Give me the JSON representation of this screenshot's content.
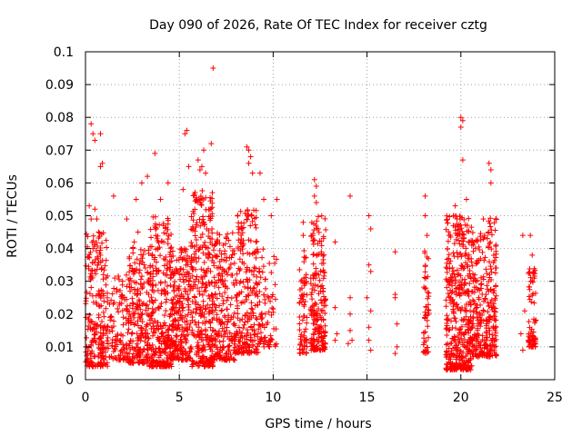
{
  "chart_data": {
    "type": "scatter",
    "title": "Day 090 of 2026, Rate Of TEC Index for receiver cztg",
    "xlabel": "GPS time / hours",
    "ylabel": "ROTI / TECUs",
    "xlim": [
      0,
      25
    ],
    "ylim": [
      0,
      0.1
    ],
    "xticks": [
      0,
      5,
      10,
      15,
      20,
      25
    ],
    "xtick_labels": [
      "0",
      "5",
      "10",
      "15",
      "20",
      "25"
    ],
    "yticks": [
      0,
      0.01,
      0.02,
      0.03,
      0.04,
      0.05,
      0.06,
      0.07,
      0.08,
      0.09,
      0.1
    ],
    "ytick_labels": [
      "0",
      "0.01",
      "0.02",
      "0.03",
      "0.04",
      "0.05",
      "0.06",
      "0.07",
      "0.08",
      "0.09",
      "0.1"
    ],
    "grid": true,
    "marker": "+",
    "color": "#ff0000",
    "series": [
      {
        "name": "ROTI",
        "points": [
          [
            0.3,
            0.078
          ],
          [
            0.4,
            0.075
          ],
          [
            0.5,
            0.073
          ],
          [
            0.8,
            0.075
          ],
          [
            0.9,
            0.066
          ],
          [
            0.8,
            0.065
          ],
          [
            0.2,
            0.053
          ],
          [
            0.5,
            0.052
          ],
          [
            0.6,
            0.049
          ],
          [
            0.3,
            0.049
          ],
          [
            0.7,
            0.045
          ],
          [
            0.4,
            0.04
          ],
          [
            1.5,
            0.056
          ],
          [
            2.2,
            0.049
          ],
          [
            2.6,
            0.042
          ],
          [
            2.8,
            0.045
          ],
          [
            3.3,
            0.062
          ],
          [
            3.7,
            0.069
          ],
          [
            4.4,
            0.06
          ],
          [
            3.0,
            0.06
          ],
          [
            2.7,
            0.055
          ],
          [
            4.0,
            0.055
          ],
          [
            5.3,
            0.075
          ],
          [
            5.4,
            0.076
          ],
          [
            5.5,
            0.065
          ],
          [
            5.2,
            0.058
          ],
          [
            6.0,
            0.067
          ],
          [
            6.2,
            0.065
          ],
          [
            6.1,
            0.064
          ],
          [
            6.4,
            0.063
          ],
          [
            6.3,
            0.07
          ],
          [
            6.7,
            0.072
          ],
          [
            6.8,
            0.095
          ],
          [
            8.6,
            0.071
          ],
          [
            8.7,
            0.07
          ],
          [
            8.8,
            0.068
          ],
          [
            8.7,
            0.066
          ],
          [
            8.9,
            0.063
          ],
          [
            9.3,
            0.063
          ],
          [
            9.5,
            0.055
          ],
          [
            9.9,
            0.05
          ],
          [
            10.2,
            0.055
          ],
          [
            11.6,
            0.048
          ],
          [
            11.6,
            0.044
          ],
          [
            12.2,
            0.061
          ],
          [
            12.3,
            0.059
          ],
          [
            12.2,
            0.056
          ],
          [
            12.3,
            0.054
          ],
          [
            12.4,
            0.046
          ],
          [
            13.3,
            0.042
          ],
          [
            14.1,
            0.056
          ],
          [
            15.1,
            0.05
          ],
          [
            15.2,
            0.046
          ],
          [
            16.5,
            0.039
          ],
          [
            18.1,
            0.056
          ],
          [
            18.1,
            0.05
          ],
          [
            18.2,
            0.044
          ],
          [
            19.6,
            0.05
          ],
          [
            19.7,
            0.053
          ],
          [
            19.8,
            0.049
          ],
          [
            19.6,
            0.047
          ],
          [
            20.0,
            0.08
          ],
          [
            20.1,
            0.079
          ],
          [
            20.0,
            0.077
          ],
          [
            20.1,
            0.067
          ],
          [
            20.3,
            0.055
          ],
          [
            21.2,
            0.049
          ],
          [
            21.5,
            0.066
          ],
          [
            21.6,
            0.064
          ],
          [
            21.6,
            0.06
          ],
          [
            23.3,
            0.044
          ],
          [
            23.7,
            0.044
          ],
          [
            23.8,
            0.038
          ],
          [
            16.5,
            0.026
          ],
          [
            16.5,
            0.025
          ],
          [
            16.6,
            0.017
          ],
          [
            16.6,
            0.01
          ],
          [
            16.5,
            0.008
          ],
          [
            14.1,
            0.025
          ],
          [
            14.1,
            0.02
          ],
          [
            14.1,
            0.015
          ],
          [
            14.2,
            0.012
          ],
          [
            14.0,
            0.011
          ],
          [
            13.3,
            0.022
          ],
          [
            13.4,
            0.014
          ],
          [
            13.3,
            0.012
          ],
          [
            15.1,
            0.035
          ],
          [
            15.2,
            0.033
          ],
          [
            15.0,
            0.025
          ],
          [
            15.2,
            0.021
          ],
          [
            15.1,
            0.016
          ],
          [
            15.1,
            0.012
          ],
          [
            15.2,
            0.009
          ],
          [
            23.4,
            0.021
          ],
          [
            23.2,
            0.014
          ],
          [
            23.3,
            0.009
          ]
        ]
      }
    ],
    "clusters": [
      {
        "x": [
          0.0,
          1.2
        ],
        "y": [
          0.004,
          0.045
        ],
        "n": 230
      },
      {
        "x": [
          1.2,
          2.3
        ],
        "y": [
          0.006,
          0.032
        ],
        "n": 110
      },
      {
        "x": [
          2.3,
          3.4
        ],
        "y": [
          0.005,
          0.042
        ],
        "n": 220
      },
      {
        "x": [
          3.4,
          4.6
        ],
        "y": [
          0.004,
          0.05
        ],
        "n": 300
      },
      {
        "x": [
          4.6,
          5.6
        ],
        "y": [
          0.006,
          0.04
        ],
        "n": 230
      },
      {
        "x": [
          5.6,
          6.8
        ],
        "y": [
          0.004,
          0.058
        ],
        "n": 320
      },
      {
        "x": [
          6.8,
          8.0
        ],
        "y": [
          0.006,
          0.045
        ],
        "n": 220
      },
      {
        "x": [
          8.0,
          9.2
        ],
        "y": [
          0.008,
          0.052
        ],
        "n": 230
      },
      {
        "x": [
          9.2,
          10.2
        ],
        "y": [
          0.01,
          0.04
        ],
        "n": 80
      },
      {
        "x": [
          11.4,
          11.8
        ],
        "y": [
          0.008,
          0.04
        ],
        "n": 70
      },
      {
        "x": [
          12.0,
          12.8
        ],
        "y": [
          0.009,
          0.05
        ],
        "n": 200
      },
      {
        "x": [
          18.0,
          18.3
        ],
        "y": [
          0.008,
          0.04
        ],
        "n": 50
      },
      {
        "x": [
          19.2,
          20.6
        ],
        "y": [
          0.003,
          0.05
        ],
        "n": 420
      },
      {
        "x": [
          20.6,
          21.4
        ],
        "y": [
          0.007,
          0.045
        ],
        "n": 170
      },
      {
        "x": [
          21.4,
          21.9
        ],
        "y": [
          0.007,
          0.05
        ],
        "n": 120
      },
      {
        "x": [
          23.6,
          24.0
        ],
        "y": [
          0.01,
          0.035
        ],
        "n": 70
      }
    ]
  }
}
